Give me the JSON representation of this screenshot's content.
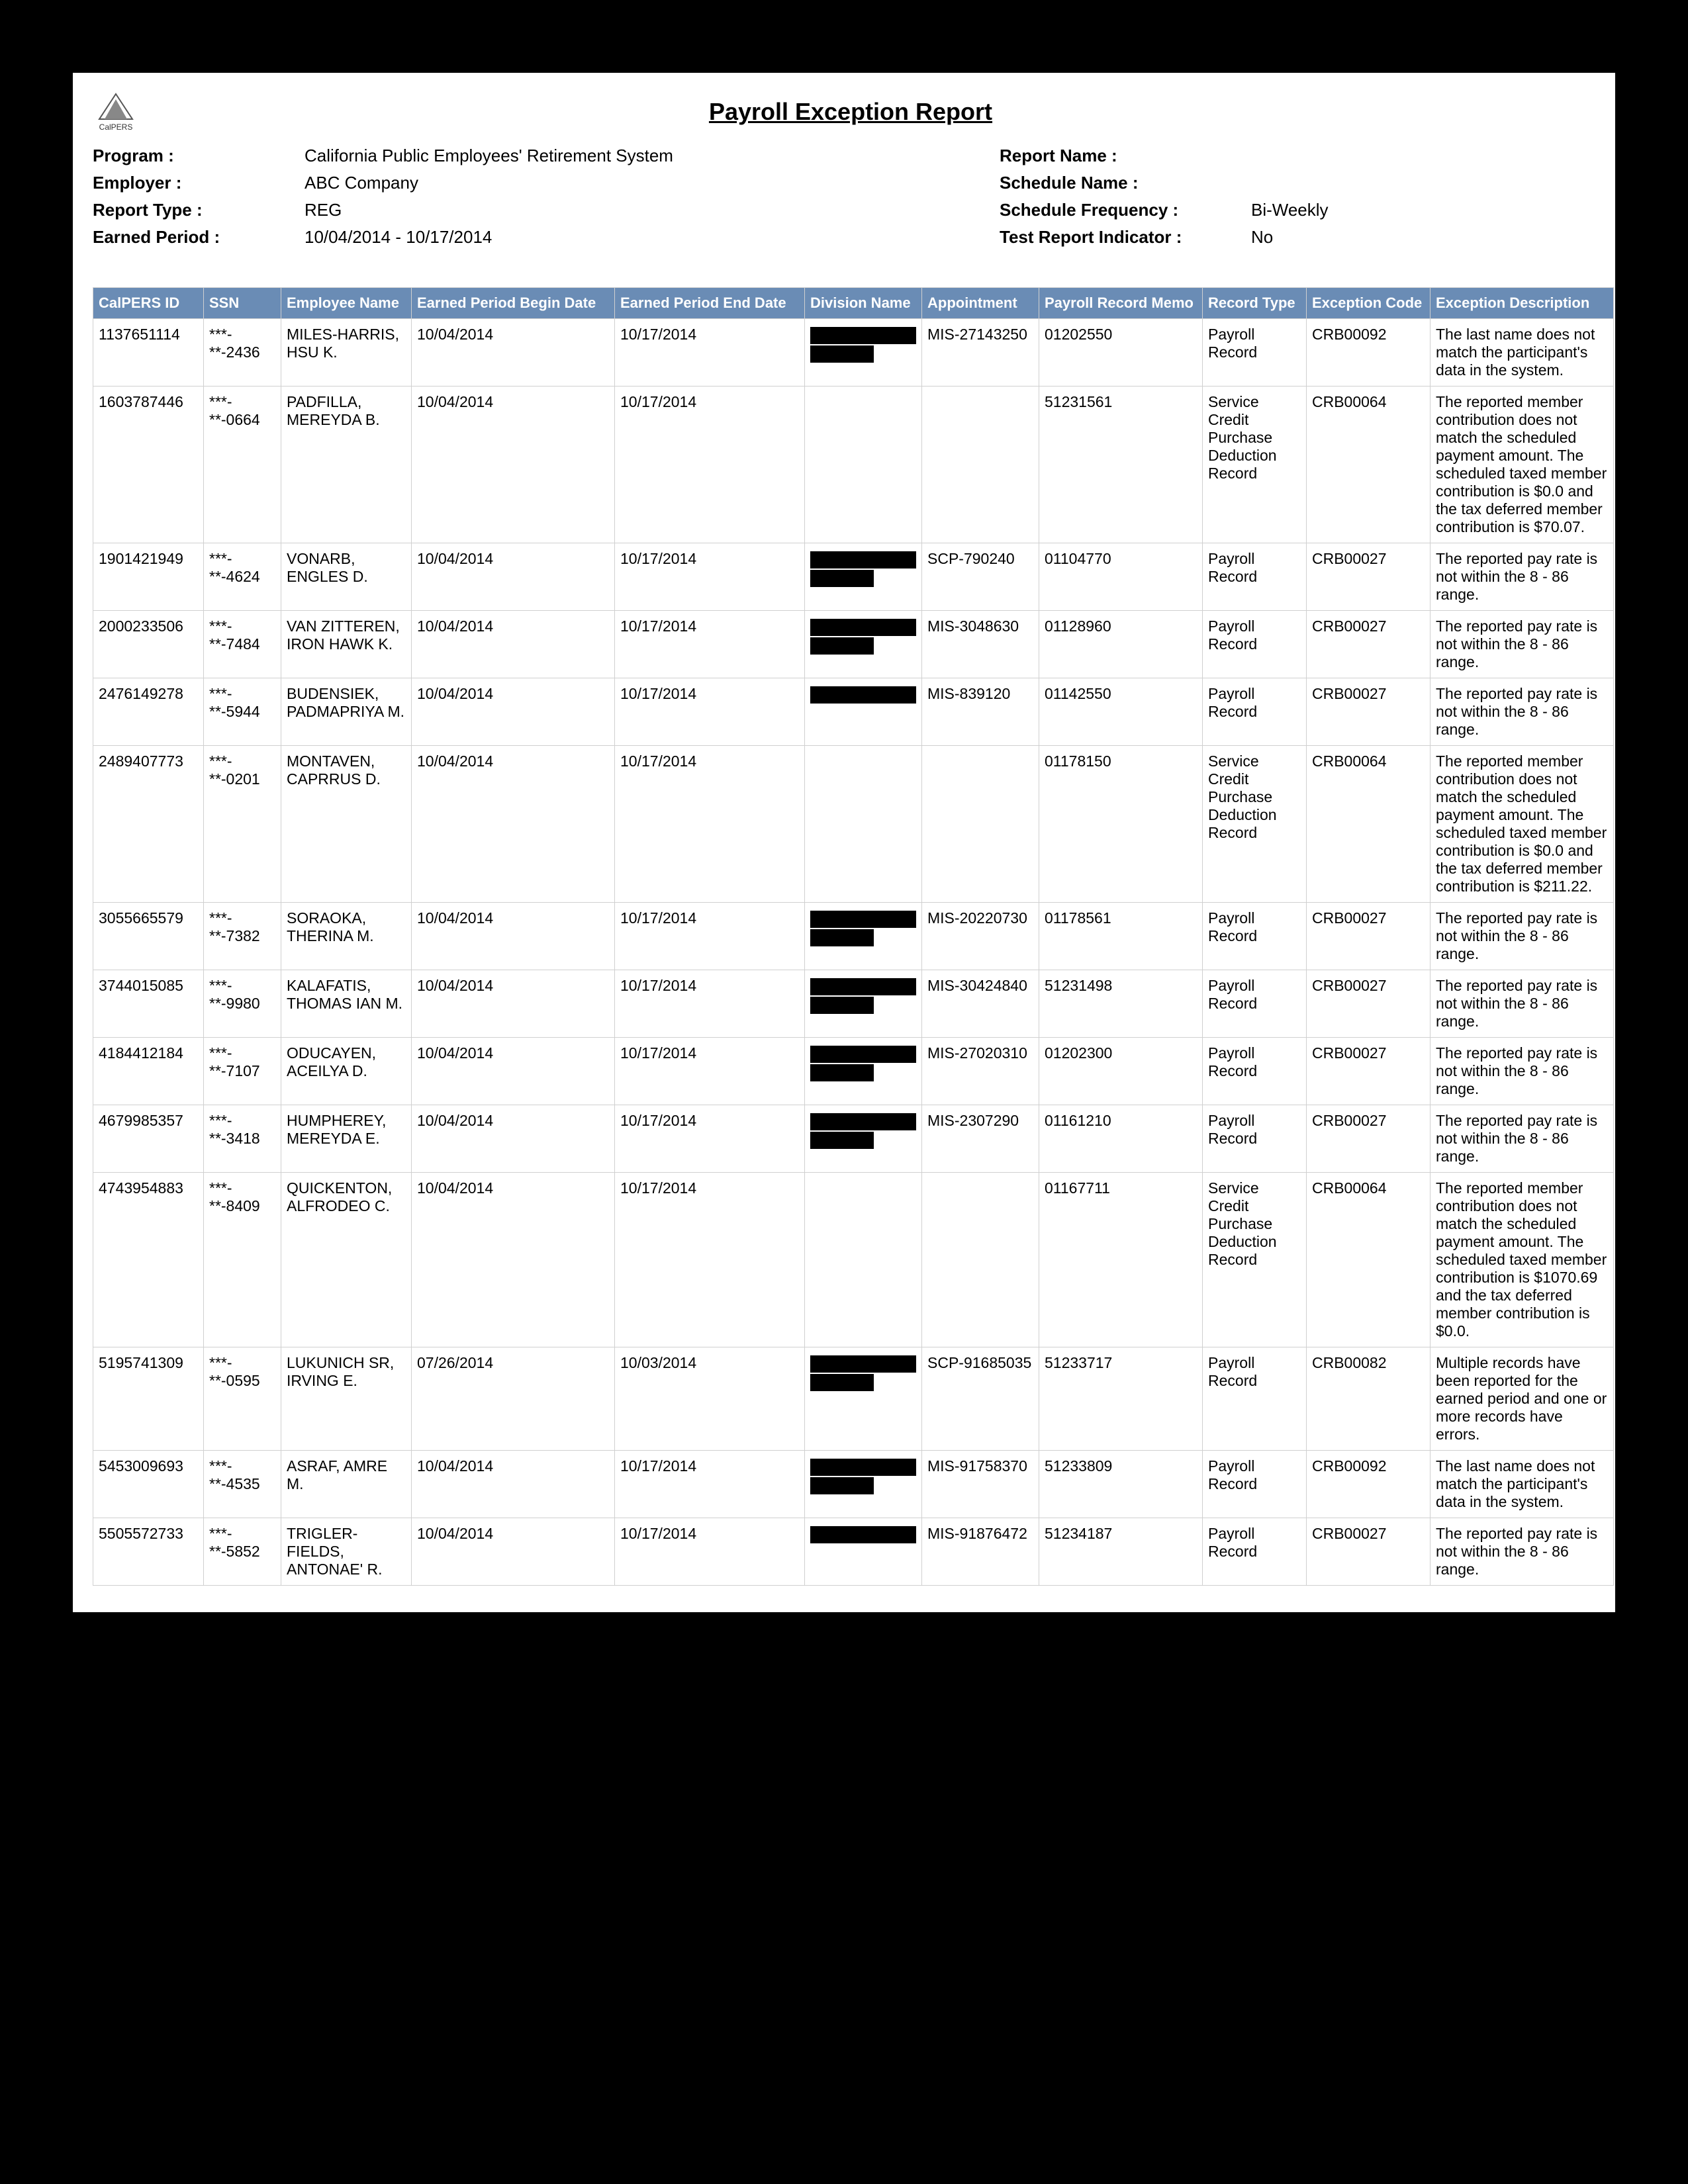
{
  "title": "Payroll Exception Report",
  "meta": {
    "program_label": "Program :",
    "program_value": "California Public Employees' Retirement System",
    "employer_label": "Employer :",
    "employer_value": "ABC Company",
    "report_type_label": "Report Type :",
    "report_type_value": "REG",
    "earned_period_label": "Earned Period :",
    "earned_period_value": "10/04/2014 - 10/17/2014",
    "report_name_label": "Report Name :",
    "report_name_value": "",
    "schedule_name_label": "Schedule Name :",
    "schedule_name_value": "",
    "schedule_freq_label": "Schedule Frequency :",
    "schedule_freq_value": "Bi-Weekly",
    "test_indicator_label": "Test Report Indicator :",
    "test_indicator_value": "No"
  },
  "columns": [
    "CalPERS ID",
    "SSN",
    "Employee Name",
    "Earned Period Begin Date",
    "Earned Period End Date",
    "Division Name",
    "Appointment",
    "Payroll Record Memo",
    "Record Type",
    "Exception Code",
    "Exception Description"
  ],
  "col_classes": [
    "col-id",
    "col-ssn",
    "col-name",
    "col-begin",
    "col-end",
    "col-div",
    "col-appt",
    "col-memo",
    "col-rtype",
    "col-ecode",
    "col-edesc"
  ],
  "rows": [
    {
      "id": "1137651114",
      "ssn": "***-**-2436",
      "name": "MILES-HARRIS, HSU K.",
      "begin": "10/04/2014",
      "end": "10/17/2014",
      "div_redact": 2,
      "appt": "MIS-27143250",
      "memo": "01202550",
      "rtype": "Payroll Record",
      "ecode": "CRB00092",
      "edesc": "The last name does not match the participant's data in the system."
    },
    {
      "id": "1603787446",
      "ssn": "***-**-0664",
      "name": "PADFILLA, MEREYDA B.",
      "begin": "10/04/2014",
      "end": "10/17/2014",
      "div_redact": 0,
      "appt": "",
      "memo": "51231561",
      "rtype": "Service Credit Purchase Deduction Record",
      "ecode": "CRB00064",
      "edesc": "The reported member contribution does not match the scheduled payment amount. The scheduled taxed member contribution is $0.0 and the tax deferred member contribution is $70.07."
    },
    {
      "id": "1901421949",
      "ssn": "***-**-4624",
      "name": "VONARB, ENGLES D.",
      "begin": "10/04/2014",
      "end": "10/17/2014",
      "div_redact": 2,
      "appt": "SCP-790240",
      "memo": "01104770",
      "rtype": "Payroll Record",
      "ecode": "CRB00027",
      "edesc": "The reported pay rate is not within the 8 - 86 range."
    },
    {
      "id": "2000233506",
      "ssn": "***-**-7484",
      "name": "VAN ZITTEREN, IRON HAWK K.",
      "begin": "10/04/2014",
      "end": "10/17/2014",
      "div_redact": 2,
      "appt": "MIS-3048630",
      "memo": "01128960",
      "rtype": "Payroll Record",
      "ecode": "CRB00027",
      "edesc": "The reported pay rate is not within the 8 - 86 range."
    },
    {
      "id": "2476149278",
      "ssn": "***-**-5944",
      "name": "BUDENSIEK, PADMAPRIYA M.",
      "begin": "10/04/2014",
      "end": "10/17/2014",
      "div_redact": 1,
      "appt": "MIS-839120",
      "memo": "01142550",
      "rtype": "Payroll Record",
      "ecode": "CRB00027",
      "edesc": "The reported pay rate is not within the 8 - 86 range."
    },
    {
      "id": "2489407773",
      "ssn": "***-**-0201",
      "name": "MONTAVEN, CAPRRUS D.",
      "begin": "10/04/2014",
      "end": "10/17/2014",
      "div_redact": 0,
      "appt": "",
      "memo": "01178150",
      "rtype": "Service Credit Purchase Deduction Record",
      "ecode": "CRB00064",
      "edesc": "The reported member contribution does not match the scheduled payment amount. The scheduled taxed member contribution is $0.0 and the tax deferred member contribution is $211.22."
    },
    {
      "id": "3055665579",
      "ssn": "***-**-7382",
      "name": "SORAOKA, THERINA M.",
      "begin": "10/04/2014",
      "end": "10/17/2014",
      "div_redact": 2,
      "appt": "MIS-20220730",
      "memo": "01178561",
      "rtype": "Payroll Record",
      "ecode": "CRB00027",
      "edesc": "The reported pay rate is not within the 8 - 86 range."
    },
    {
      "id": "3744015085",
      "ssn": "***-**-9980",
      "name": "KALAFATIS, THOMAS IAN M.",
      "begin": "10/04/2014",
      "end": "10/17/2014",
      "div_redact": 2,
      "appt": "MIS-30424840",
      "memo": "51231498",
      "rtype": "Payroll Record",
      "ecode": "CRB00027",
      "edesc": "The reported pay rate is not within the 8 - 86 range."
    },
    {
      "id": "4184412184",
      "ssn": "***-**-7107",
      "name": "ODUCAYEN, ACEILYA D.",
      "begin": "10/04/2014",
      "end": "10/17/2014",
      "div_redact": 2,
      "appt": "MIS-27020310",
      "memo": "01202300",
      "rtype": "Payroll Record",
      "ecode": "CRB00027",
      "edesc": "The reported pay rate is not within the 8 - 86 range."
    },
    {
      "id": "4679985357",
      "ssn": "***-**-3418",
      "name": "HUMPHEREY, MEREYDA E.",
      "begin": "10/04/2014",
      "end": "10/17/2014",
      "div_redact": 2,
      "appt": "MIS-2307290",
      "memo": "01161210",
      "rtype": "Payroll Record",
      "ecode": "CRB00027",
      "edesc": "The reported pay rate is not within the 8 - 86 range."
    },
    {
      "id": "4743954883",
      "ssn": "***-**-8409",
      "name": "QUICKENTON, ALFRODEO C.",
      "begin": "10/04/2014",
      "end": "10/17/2014",
      "div_redact": 0,
      "appt": "",
      "memo": "01167711",
      "rtype": "Service Credit Purchase Deduction Record",
      "ecode": "CRB00064",
      "edesc": "The reported member contribution does not match the scheduled payment amount. The scheduled taxed member contribution is $1070.69 and the tax deferred member contribution is $0.0."
    },
    {
      "id": "5195741309",
      "ssn": "***-**-0595",
      "name": "LUKUNICH SR, IRVING E.",
      "begin": "07/26/2014",
      "end": "10/03/2014",
      "div_redact": 2,
      "appt": "SCP-91685035",
      "memo": "51233717",
      "rtype": "Payroll Record",
      "ecode": "CRB00082",
      "edesc": "Multiple records have been reported for the earned period and one or more records have errors."
    },
    {
      "id": "5453009693",
      "ssn": "***-**-4535",
      "name": "ASRAF, AMRE M.",
      "begin": "10/04/2014",
      "end": "10/17/2014",
      "div_redact": 2,
      "appt": "MIS-91758370",
      "memo": "51233809",
      "rtype": "Payroll Record",
      "ecode": "CRB00092",
      "edesc": "The last name does not match the participant's data in the system."
    },
    {
      "id": "5505572733",
      "ssn": "***-**-5852",
      "name": "TRIGLER-FIELDS, ANTONAE' R.",
      "begin": "10/04/2014",
      "end": "10/17/2014",
      "div_redact": 1,
      "appt": "MIS-91876472",
      "memo": "51234187",
      "rtype": "Payroll Record",
      "ecode": "CRB00027",
      "edesc": "The reported pay rate is not within the 8 - 86 range."
    }
  ],
  "colors": {
    "header_bg": "#6a8cb5",
    "header_text": "#ffffff",
    "border": "#d0d0d0",
    "page_bg": "#ffffff",
    "outer_bg": "#000000"
  }
}
